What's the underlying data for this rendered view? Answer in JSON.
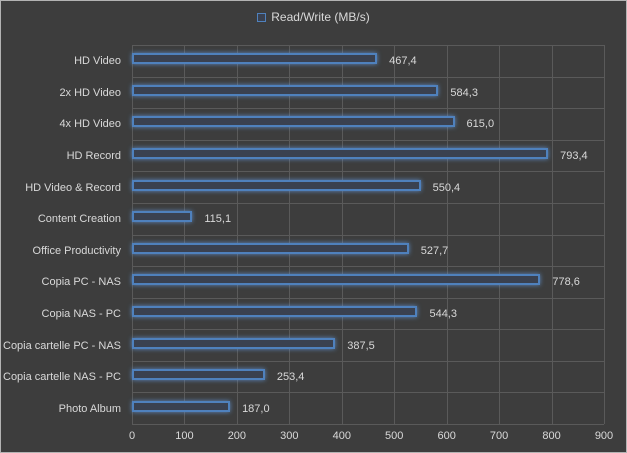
{
  "chart_data": {
    "type": "bar",
    "orientation": "horizontal",
    "legend_label": "Read/Write (MB/s)",
    "legend_position": "top-center",
    "grid": true,
    "categories": [
      "HD Video",
      "2x HD Video",
      "4x HD Video",
      "HD Record",
      "HD Video & Record",
      "Content Creation",
      "Office Productivity",
      "Copia PC - NAS",
      "Copia NAS - PC",
      "Copia cartelle PC - NAS",
      "Copia cartelle NAS - PC",
      "Photo Album"
    ],
    "values": [
      467.4,
      584.3,
      615.0,
      793.4,
      550.4,
      115.1,
      527.7,
      778.6,
      544.3,
      387.5,
      253.4,
      187.0
    ],
    "value_labels": [
      "467,4",
      "584,3",
      "615,0",
      "793,4",
      "550,4",
      "115,1",
      "527,7",
      "778,6",
      "544,3",
      "387,5",
      "253,4",
      "187,0"
    ],
    "xlabel": "",
    "ylabel": "",
    "xlim": [
      0,
      900
    ],
    "xticks": [
      "0",
      "100",
      "200",
      "300",
      "400",
      "500",
      "600",
      "700",
      "800",
      "900"
    ]
  },
  "colors": {
    "background": "#3d3d3d",
    "gridline": "#5a5a5a",
    "bar_border": "#4f81bd",
    "bar_fill": "#3a4150",
    "text": "#d9d9d9",
    "frame": "#b3b3b3"
  }
}
